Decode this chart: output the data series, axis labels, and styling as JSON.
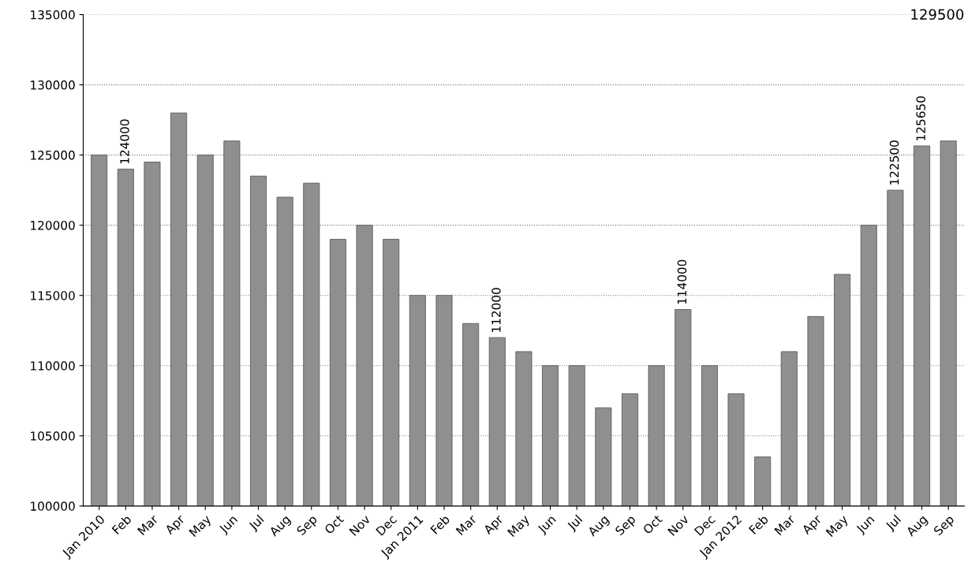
{
  "chart_data": {
    "type": "bar",
    "categories": [
      "Jan 2010",
      "Feb",
      "Mar",
      "Apr",
      "May",
      "Jun",
      "Jul",
      "Aug",
      "Sep",
      "Oct",
      "Nov",
      "Dec",
      "Jan 2011",
      "Feb",
      "Mar",
      "Apr",
      "May",
      "Jun",
      "Jul",
      "Aug",
      "Sep",
      "Oct",
      "Nov",
      "Dec",
      "Jan 2012",
      "Feb",
      "Mar",
      "Apr",
      "May",
      "Jun",
      "Jul",
      "Aug",
      "Sep"
    ],
    "values": [
      125000,
      124000,
      124500,
      128000,
      125000,
      126000,
      123500,
      122000,
      123000,
      119000,
      120000,
      119000,
      115000,
      115000,
      113000,
      112000,
      111000,
      110000,
      110000,
      107000,
      108000,
      110000,
      114000,
      110000,
      108000,
      103500,
      111000,
      113500,
      116500,
      120000,
      122500,
      125650,
      126000
    ],
    "value_labels": [
      null,
      "124000",
      null,
      null,
      null,
      null,
      null,
      null,
      null,
      null,
      null,
      null,
      null,
      null,
      null,
      "112000",
      null,
      null,
      null,
      null,
      null,
      null,
      "114000",
      null,
      null,
      null,
      null,
      null,
      null,
      null,
      "122500",
      "125650",
      null
    ],
    "annotations": [
      "129500"
    ],
    "color": "#8f8f8f",
    "ylim": [
      100000,
      135000
    ],
    "yticks": [
      100000,
      105000,
      110000,
      115000,
      120000,
      125000,
      130000,
      135000
    ],
    "grid": "y"
  }
}
